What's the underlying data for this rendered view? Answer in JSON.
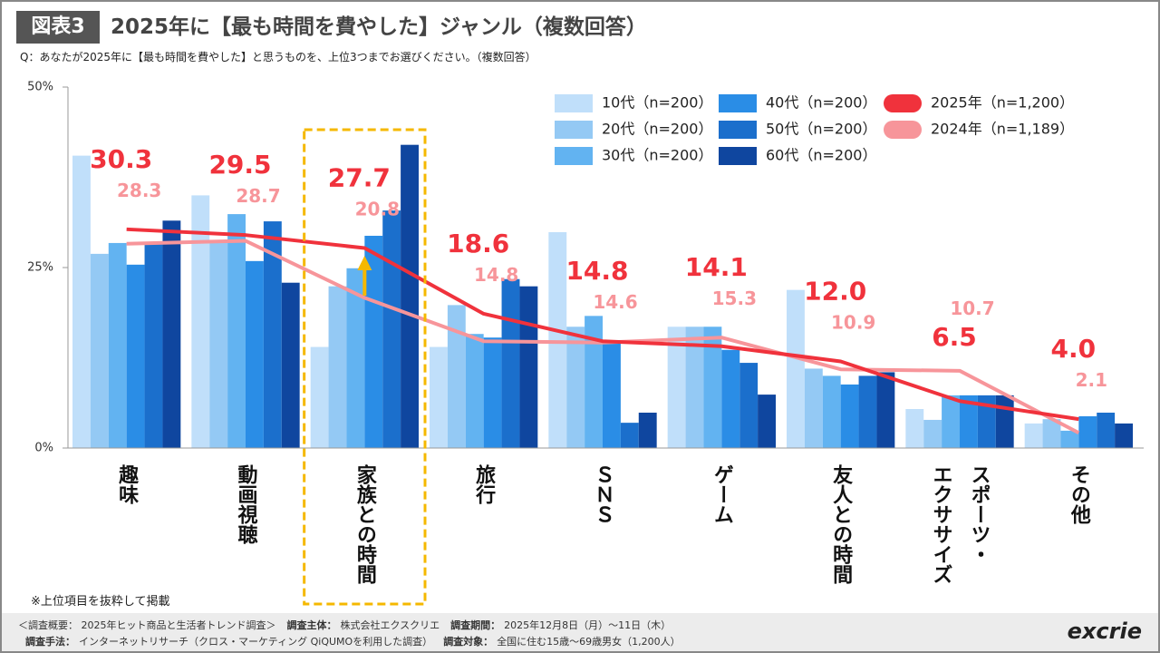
{
  "header": {
    "badge": "図表3",
    "title": "2025年に【最も時間を費やした】ジャンル（複数回答）",
    "question": "Q：あなたが2025年に【最も時間を費やした】と思うものを、上位3つまでお選びください。（複数回答）"
  },
  "note": "※上位項目を抜粋して掲載",
  "footer": {
    "line1": [
      {
        "text": "＜調査概要： 2025年ヒット商品と生活者トレンド調査＞"
      },
      {
        "label": "調査主体：",
        "text": "株式会社エクスクリエ"
      },
      {
        "label": "調査期間：",
        "text": "2025年12月8日（月）～11日（木）"
      }
    ],
    "line2": [
      {
        "label": "調査手法：",
        "text": "インターネットリサーチ（クロス・マーケティング QiQUMOを利用した調査）"
      },
      {
        "label": "調査対象：",
        "text": "全国に住む15歳～69歳男女（1,200人）"
      }
    ],
    "logo": "excrie"
  },
  "chart_data": {
    "type": "bar_line",
    "categories": [
      "趣味",
      "動画視聴",
      "家族との時間",
      "旅行",
      "ＳＮＳ",
      "ゲーム",
      "友人との時間",
      [
        "スポーツ・",
        "エクササイズ"
      ],
      "その他"
    ],
    "highlight_category": 2,
    "ylim": [
      0,
      50
    ],
    "yticks": [
      {
        "value": 0,
        "label": "0%"
      },
      {
        "value": 25,
        "label": "25%"
      },
      {
        "value": 50,
        "label": "50%"
      }
    ],
    "series": [
      {
        "name": "10代（n=200）",
        "color": "#c0dffa",
        "values": [
          40.5,
          35,
          14,
          14,
          29.9,
          16.8,
          21.9,
          5.4,
          3.4
        ]
      },
      {
        "name": "20代（n=200）",
        "color": "#94c9f4",
        "values": [
          26.9,
          28.8,
          22.4,
          19.8,
          16.8,
          16.8,
          11,
          3.9,
          4
        ]
      },
      {
        "name": "30代（n=200）",
        "color": "#62b3f1",
        "values": [
          28.4,
          32.4,
          24.9,
          15.8,
          18.3,
          16.8,
          10,
          7.3,
          2.4
        ]
      },
      {
        "name": "40代（n=200）",
        "color": "#2a8de6",
        "values": [
          25.4,
          25.9,
          29.4,
          15.3,
          14.8,
          13.6,
          8.8,
          7.3,
          4.4
        ]
      },
      {
        "name": "50代（n=200）",
        "color": "#1b6fcc",
        "values": [
          28.5,
          31.4,
          32.9,
          23.4,
          3.5,
          11.8,
          10,
          7.3,
          4.9
        ]
      },
      {
        "name": "60代（n=200）",
        "color": "#0f469f",
        "values": [
          31.5,
          22.9,
          42,
          22.4,
          4.9,
          7.4,
          10.5,
          7.3,
          3.4
        ]
      },
      {
        "name": "2025年（n=1,200）",
        "type": "line",
        "color": "#f0323c",
        "values": [
          30.3,
          29.5,
          27.7,
          18.6,
          14.8,
          14.1,
          12.0,
          6.5,
          4.0
        ],
        "value_labels": [
          "30.3",
          "29.5",
          "27.7",
          "18.6",
          "14.8",
          "14.1",
          "12.0",
          "6.5",
          "4.0"
        ]
      },
      {
        "name": "2024年（n=1,189）",
        "type": "line",
        "color": "#f7959a",
        "values": [
          28.3,
          28.7,
          20.8,
          14.8,
          14.6,
          15.3,
          10.9,
          10.7,
          2.1
        ],
        "value_labels": [
          "28.3",
          "28.7",
          "20.8",
          "14.8",
          "14.6",
          "15.3",
          "10.9",
          "10.7",
          "2.1"
        ]
      }
    ]
  }
}
